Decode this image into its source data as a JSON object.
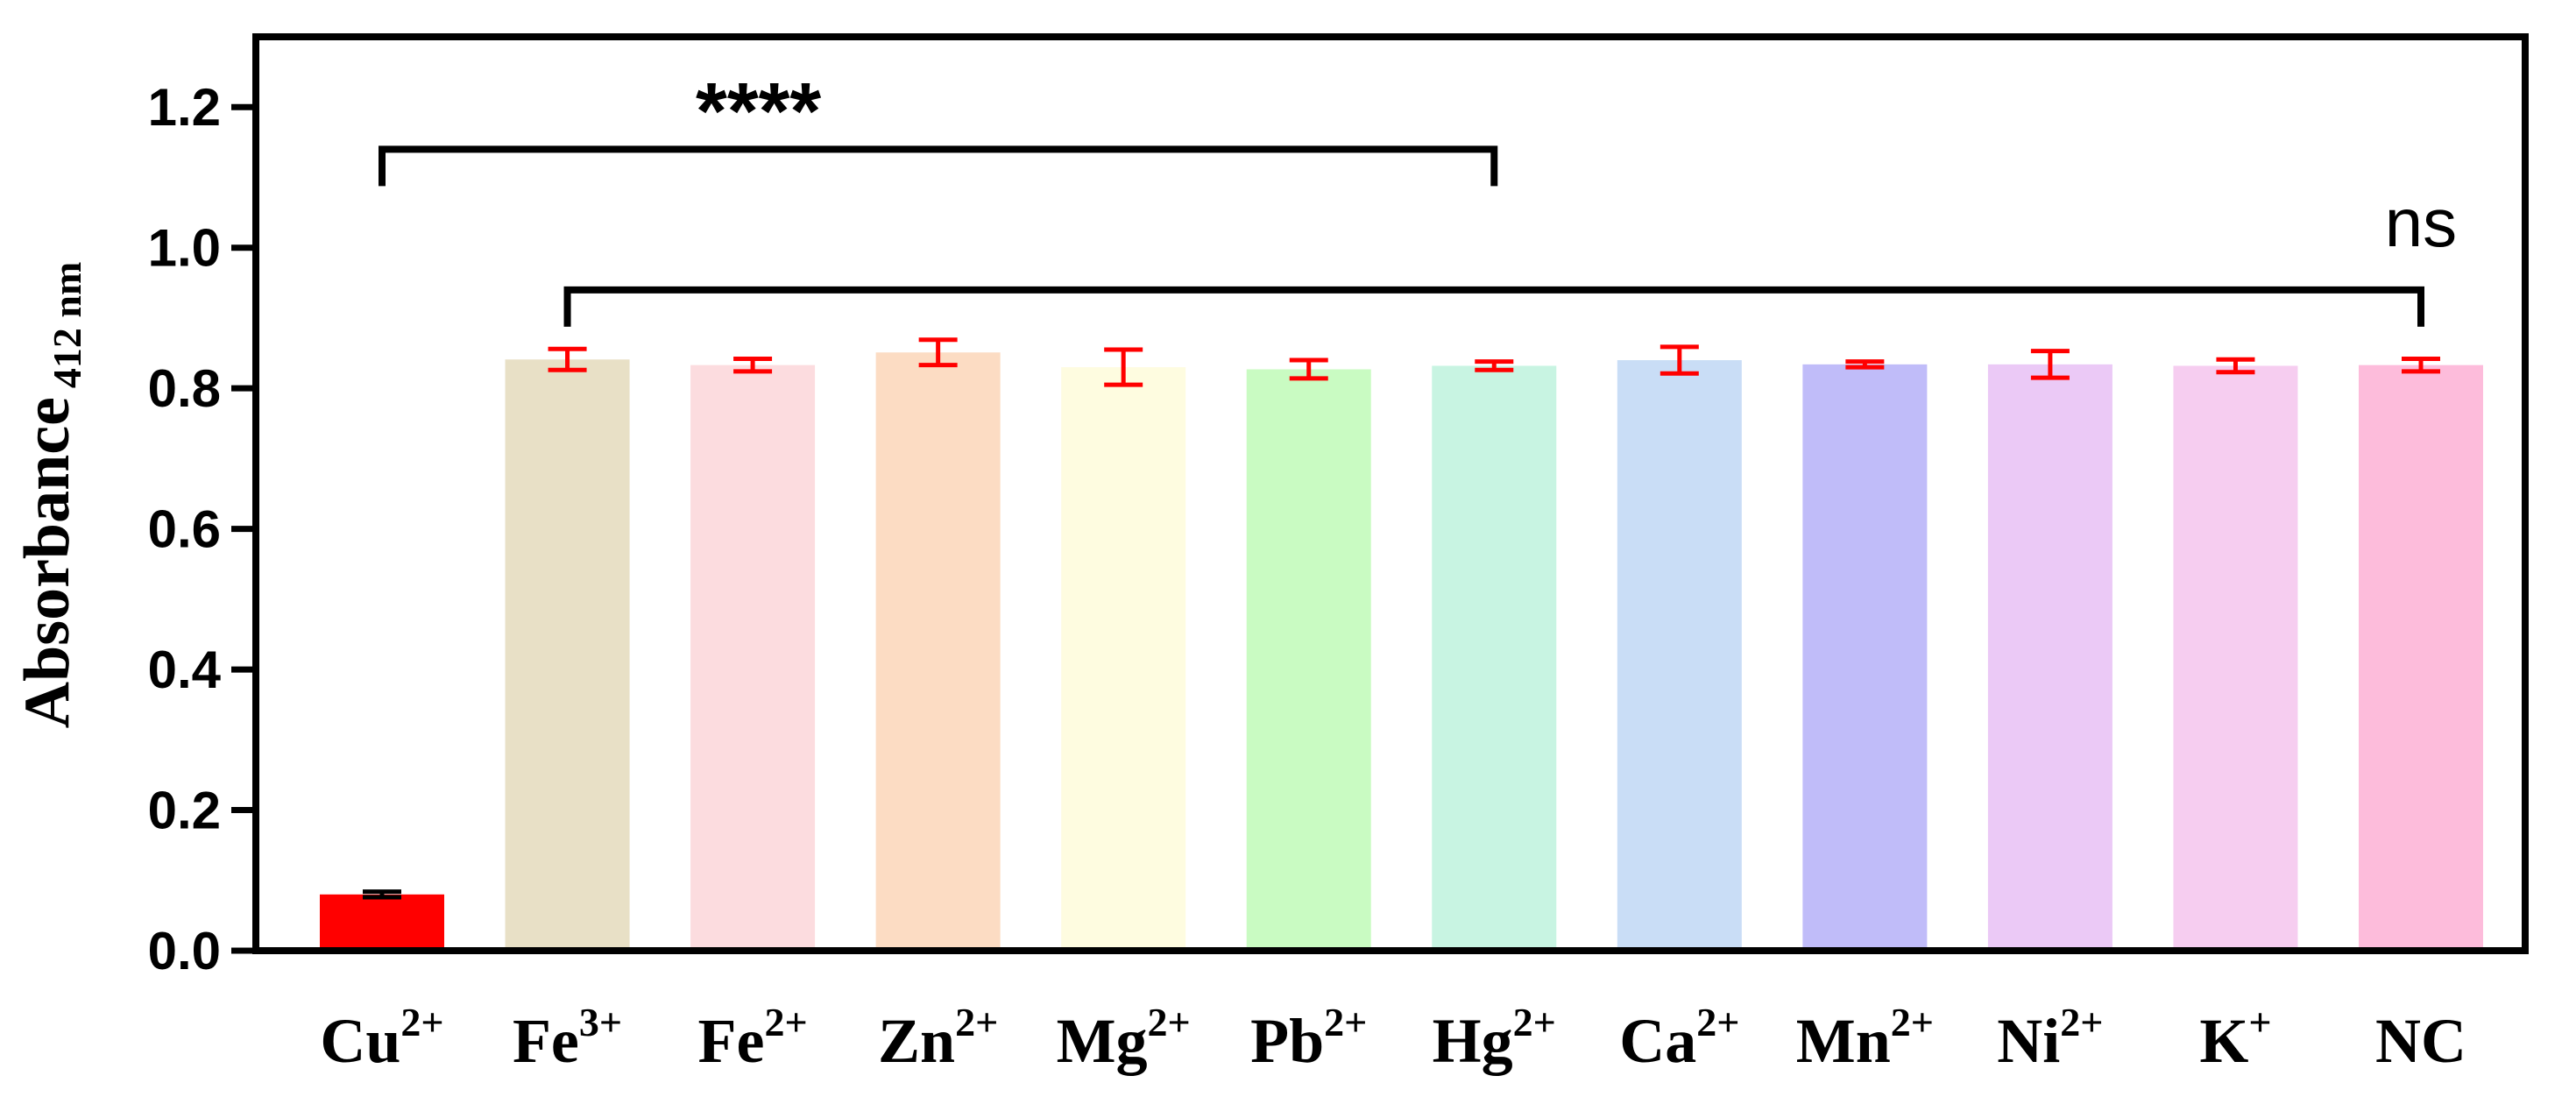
{
  "chart_data": {
    "type": "bar",
    "title": "",
    "xlabel": "",
    "ylabel": {
      "main": "Absorbance",
      "subscript": "412 nm"
    },
    "ylim": [
      0,
      1.3
    ],
    "yticks": [
      "0.0",
      "0.2",
      "0.4",
      "0.6",
      "0.8",
      "1.0",
      "1.2"
    ],
    "categories": [
      {
        "base": "Cu",
        "sup": "2+"
      },
      {
        "base": "Fe",
        "sup": "3+"
      },
      {
        "base": "Fe",
        "sup": "2+"
      },
      {
        "base": "Zn",
        "sup": "2+"
      },
      {
        "base": "Mg",
        "sup": "2+"
      },
      {
        "base": "Pb",
        "sup": "2+"
      },
      {
        "base": "Hg",
        "sup": "2+"
      },
      {
        "base": "Ca",
        "sup": "2+"
      },
      {
        "base": "Mn",
        "sup": "2+"
      },
      {
        "base": "Ni",
        "sup": "2+"
      },
      {
        "base": "K",
        "sup": "+"
      },
      {
        "base": "NC",
        "sup": ""
      }
    ],
    "values": [
      0.08,
      0.841,
      0.833,
      0.851,
      0.83,
      0.827,
      0.832,
      0.84,
      0.834,
      0.834,
      0.832,
      0.833
    ],
    "errors": [
      0.004,
      0.015,
      0.009,
      0.018,
      0.025,
      0.013,
      0.006,
      0.019,
      0.004,
      0.019,
      0.009,
      0.009
    ],
    "bar_colors": [
      "#ff0000",
      "#e8e0c6",
      "#fcdcdf",
      "#fcdcc3",
      "#fefce0",
      "#c9fbc2",
      "#c8f4e2",
      "#c9ddf6",
      "#c0bcf9",
      "#ebc9f6",
      "#f6cdf0",
      "#fdbcdb"
    ],
    "error_colors": [
      "#000000",
      "#ff0000",
      "#ff0000",
      "#ff0000",
      "#ff0000",
      "#ff0000",
      "#ff0000",
      "#ff0000",
      "#ff0000",
      "#ff0000",
      "#ff0000",
      "#ff0000"
    ],
    "annotations": [
      {
        "label": "****",
        "from_category": 0,
        "to_category": 6,
        "y": 1.14
      },
      {
        "label": "ns",
        "from_category": 1,
        "to_category": 11,
        "y": 0.94
      }
    ]
  }
}
